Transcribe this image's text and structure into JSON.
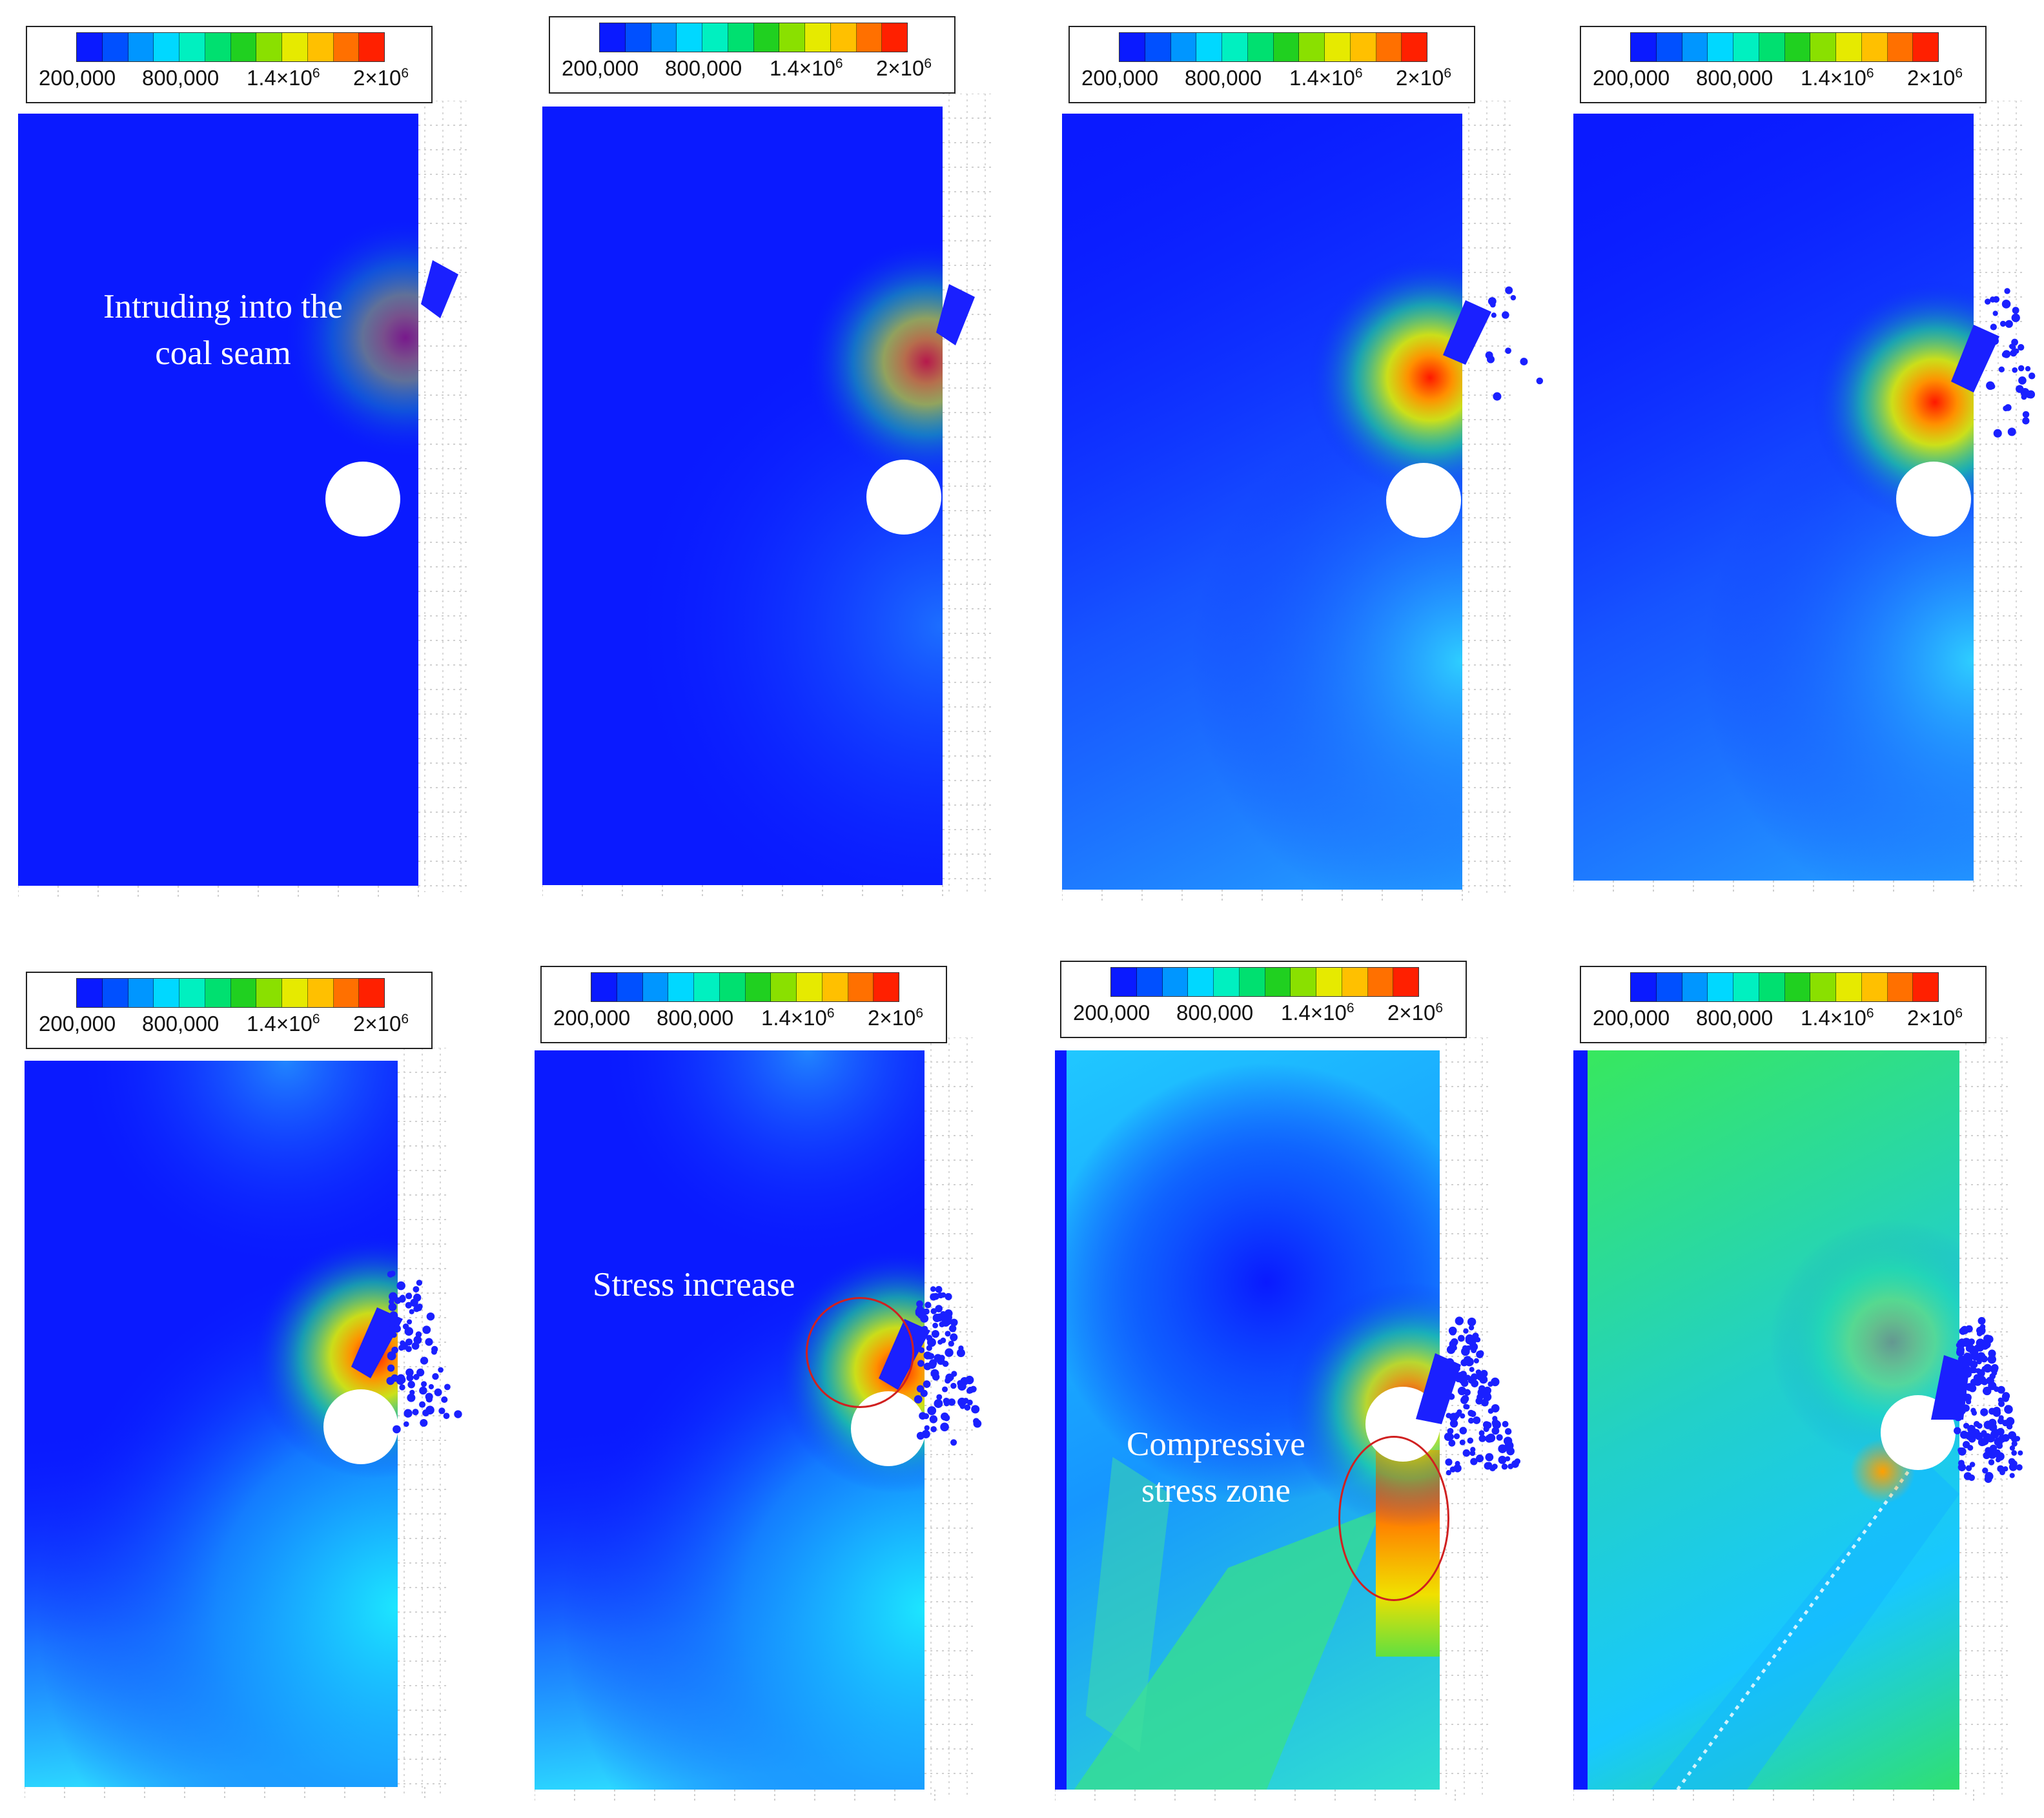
{
  "legend": {
    "ticks": [
      {
        "base": "200,000",
        "exp": ""
      },
      {
        "base": "800,000",
        "exp": ""
      },
      {
        "base": "1.4×10",
        "exp": "6"
      },
      {
        "base": "2×10",
        "exp": "6"
      }
    ],
    "colors": [
      "#0a1aff",
      "#0050ff",
      "#0096ff",
      "#00d8ff",
      "#00f0c0",
      "#00e070",
      "#20d020",
      "#8ae000",
      "#e6ea00",
      "#ffc000",
      "#ff7000",
      "#ff2000"
    ]
  },
  "annotations": {
    "intruding": "Intruding into the\ncoal seam",
    "stress_increase": "Stress increase",
    "compressive": "Compressive\nstress zone"
  }
}
